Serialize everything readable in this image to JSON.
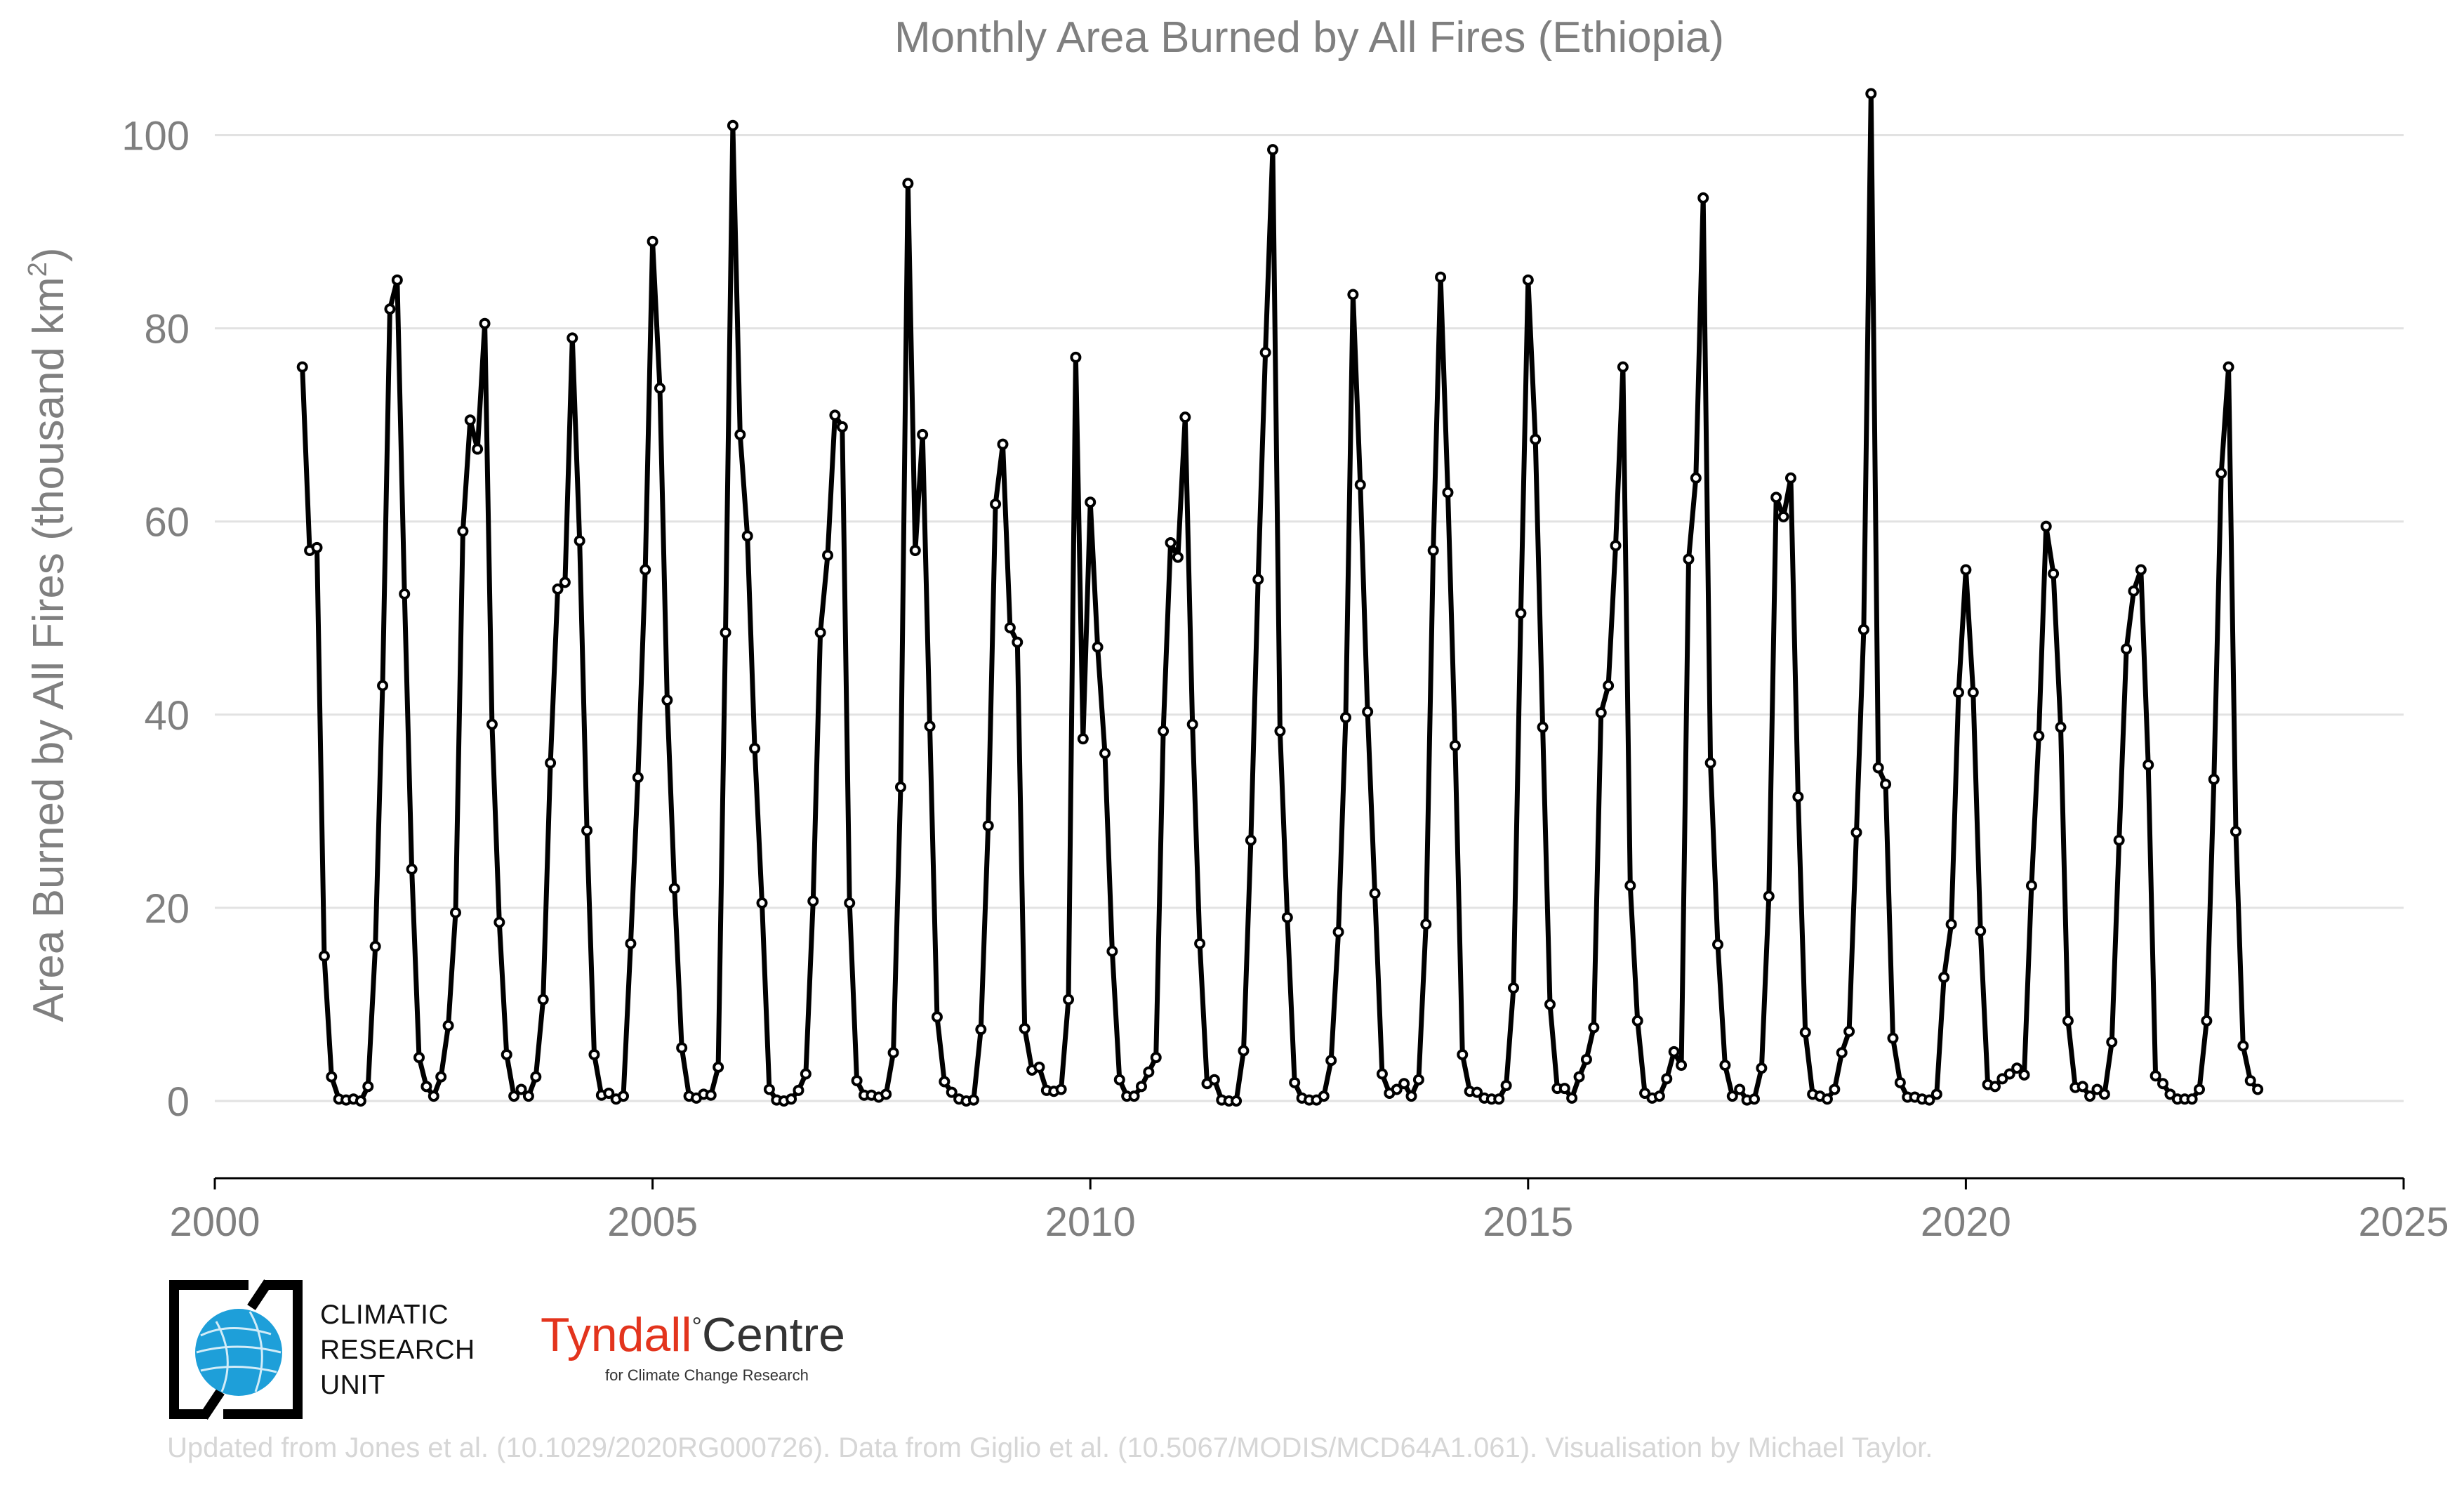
{
  "chart_data": {
    "type": "line",
    "title": "Monthly Area Burned by All Fires (Ethiopia)",
    "ylabel": "Area Burned by All Fires (thousand km",
    "ylabel_sup": "2",
    "ylabel_close": ")",
    "xlim": [
      2000,
      2025
    ],
    "ylim": [
      -8,
      106
    ],
    "x_ticks": [
      2000,
      2005,
      2010,
      2015,
      2020,
      2025
    ],
    "x_tick_labels": [
      "2000",
      "2005",
      "2010",
      "2015",
      "2020",
      "2025"
    ],
    "y_ticks": [
      0,
      20,
      40,
      60,
      80,
      100
    ],
    "y_tick_labels": [
      "0",
      "20",
      "40",
      "60",
      "80",
      "100"
    ],
    "grid": "horizontal",
    "x_start": "2001-01",
    "series": [
      {
        "values": [
          76,
          57,
          57.3,
          15,
          2.5,
          0.2,
          0.1,
          0.2,
          0,
          1.5,
          16,
          43,
          82,
          85,
          52.5,
          24,
          4.5,
          1.5,
          0.5,
          2.5,
          7.8,
          19.5,
          59,
          70.5,
          67.5,
          80.5,
          39,
          18.5,
          4.8,
          0.5,
          1.2,
          0.5,
          2.5,
          10.5,
          35,
          53,
          53.7,
          79,
          58,
          28,
          4.8,
          0.6,
          0.8,
          0.2,
          0.5,
          16.3,
          33.5,
          55,
          89,
          73.8,
          41.5,
          22,
          5.5,
          0.5,
          0.3,
          0.7,
          0.6,
          3.5,
          48.5,
          101,
          69,
          58.5,
          36.5,
          20.5,
          1.2,
          0.1,
          0,
          0.2,
          1.1,
          2.8,
          20.7,
          48.5,
          56.5,
          71,
          69.8,
          20.5,
          2.1,
          0.6,
          0.6,
          0.4,
          0.7,
          5,
          32.5,
          95,
          57,
          69,
          38.8,
          8.7,
          2,
          0.9,
          0.2,
          0,
          0.1,
          7.4,
          28.5,
          61.8,
          68,
          49,
          47.5,
          7.5,
          3.2,
          3.5,
          1.1,
          1,
          1.2,
          10.5,
          77,
          37.5,
          62,
          47,
          36,
          15.5,
          2.2,
          0.5,
          0.5,
          1.5,
          3,
          4.5,
          38.3,
          57.8,
          56.3,
          70.8,
          39,
          16.3,
          1.8,
          2.2,
          0.1,
          0,
          0,
          5.2,
          27,
          54,
          77.5,
          98.5,
          38.3,
          19,
          1.9,
          0.3,
          0.1,
          0.1,
          0.5,
          4.2,
          17.5,
          39.7,
          83.5,
          63.8,
          40.3,
          21.5,
          2.8,
          0.8,
          1.2,
          1.8,
          0.5,
          2.2,
          18.3,
          57,
          85.3,
          63,
          36.8,
          4.8,
          1,
          0.9,
          0.3,
          0.2,
          0.2,
          1.6,
          11.7,
          50.5,
          85,
          68.5,
          38.7,
          10,
          1.3,
          1.3,
          0.3,
          2.5,
          4.3,
          7.6,
          40.2,
          43,
          57.5,
          76,
          22.3,
          8.3,
          0.8,
          0.3,
          0.5,
          2.3,
          5.1,
          3.7,
          56.1,
          64.5,
          93.5,
          35,
          16.2,
          3.7,
          0.5,
          1.2,
          0.1,
          0.2,
          3.4,
          21.2,
          62.5,
          60.5,
          64.5,
          31.5,
          7.1,
          0.7,
          0.5,
          0.2,
          1.2,
          5,
          7.2,
          27.8,
          48.8,
          104.3,
          34.5,
          32.8,
          6.5,
          1.9,
          0.4,
          0.4,
          0.2,
          0.1,
          0.7,
          12.8,
          18.3,
          42.3,
          55,
          42.3,
          17.6,
          1.7,
          1.5,
          2.3,
          2.8,
          3.4,
          2.7,
          22.3,
          37.8,
          59.5,
          54.6,
          38.7,
          8.3,
          1.4,
          1.5,
          0.5,
          1.2,
          0.7,
          6.1,
          27,
          46.8,
          52.8,
          55,
          34.8,
          2.6,
          1.8,
          0.7,
          0.2,
          0.2,
          0.2,
          1.2,
          8.3,
          33.3,
          65,
          76,
          27.9,
          5.7,
          2.1,
          1.2
        ]
      }
    ]
  },
  "logos": {
    "cru_lines": [
      "CLIMATIC",
      "RESEARCH",
      "UNIT"
    ],
    "tyndall_name": "Tyndall",
    "tyndall_deg": "°",
    "tyndall_centre": "Centre",
    "tyndall_sub": "for Climate Change Research"
  },
  "footer": "Updated from Jones et al. (10.1029/2020RG000726). Data from Giglio et al. (10.5067/MODIS/MCD64A1.061). Visualisation by Michael Taylor.",
  "colors": {
    "line": "#000000",
    "grid": "#e2e2e2",
    "text": "#7f7f7f",
    "cru_blue": "#1e9fd9",
    "tyndall_red": "#e3341d"
  }
}
